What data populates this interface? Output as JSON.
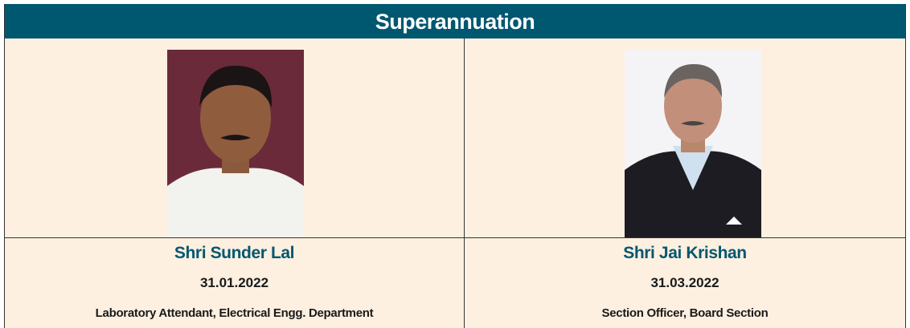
{
  "header": {
    "title": "Superannuation"
  },
  "people": [
    {
      "name": "Shri Sunder Lal",
      "date": "31.01.2022",
      "role": "Laboratory Attendant, Electrical Engg. Department"
    },
    {
      "name": "Shri Jai Krishan",
      "date": "31.03.2022",
      "role": "Section Officer, Board Section"
    }
  ]
}
